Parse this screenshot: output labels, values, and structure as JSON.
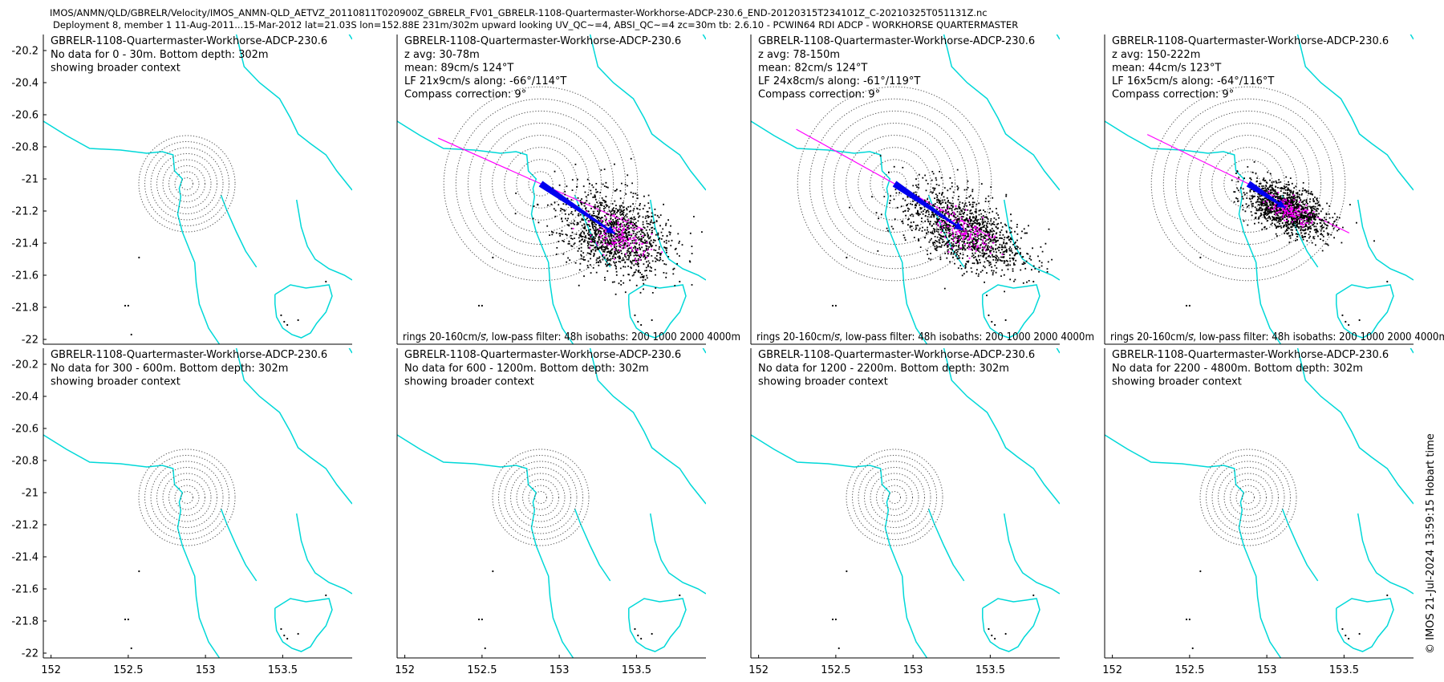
{
  "header": {
    "line1": "IMOS/ANMN/QLD/GBRELR/Velocity/IMOS_ANMN-QLD_AETVZ_20110811T020900Z_GBRELR_FV01_GBRELR-1108-Quartermaster-Workhorse-ADCP-230.6_END-20120315T234101Z_C-20210325T051131Z.nc",
    "line2": "Deployment 8, member 1 11-Aug-2011...15-Mar-2012 lat=21.03S lon=152.88E 231m/302m upward looking UV_QC~=4, ABSI_QC~=4 zc=30m tb: 2.6.10 - PCWIN64 RDI ADCP - WORKHORSE QUARTERMASTER"
  },
  "stamp": "© IMOS 21-Jul-2024 13:59:15 Hobart time",
  "chart_data": {
    "type": "scatter",
    "x_ticks": [
      "152",
      "152.5",
      "153",
      "153.5"
    ],
    "y_ticks": [
      "-20.2",
      "-20.4",
      "-20.6",
      "-20.8",
      "-21",
      "-21.2",
      "-21.4",
      "-21.6",
      "-21.8",
      "-22"
    ],
    "xlim": [
      151.95,
      153.95
    ],
    "ylim": [
      -22.03,
      -20.1
    ],
    "station": {
      "lon": 152.88,
      "lat": -21.03
    },
    "colors": {
      "coast": "#00d8d8",
      "points": "#000000",
      "lowpass": "#ff00ff",
      "mean": "#0000ee",
      "axis": "#000000"
    },
    "panels": [
      {
        "title": "GBRELR-1108-Quartermaster-Workhorse-ADCP-230.6",
        "has_data": false,
        "lines": [
          "No data for 0 - 30m. Bottom depth: 302m",
          "showing broader context"
        ]
      },
      {
        "title": "GBRELR-1108-Quartermaster-Workhorse-ADCP-230.6",
        "has_data": true,
        "lines": [
          "z avg: 30-78m",
          "mean: 89cm/s 124°T",
          "LF 21x9cm/s along: -66°/114°T",
          "Compass correction: 9°"
        ],
        "footer": "rings 20-160cm/s, low-pass filter: 48h isobaths: 200 1000 2000 4000m",
        "mean_speed_cms": 89,
        "mean_dir_degT": 124,
        "lf_major_cms": 21,
        "lf_minor_cms": 9,
        "along_deg": 114
      },
      {
        "title": "GBRELR-1108-Quartermaster-Workhorse-ADCP-230.6",
        "has_data": true,
        "lines": [
          "z avg: 78-150m",
          "mean: 82cm/s 124°T",
          "LF 24x8cm/s along: -61°/119°T",
          "Compass correction: 9°"
        ],
        "footer": "rings 20-160cm/s, low-pass filter: 48h isobaths: 200 1000 2000 4000m",
        "mean_speed_cms": 82,
        "mean_dir_degT": 124,
        "lf_major_cms": 24,
        "lf_minor_cms": 8,
        "along_deg": 119
      },
      {
        "title": "GBRELR-1108-Quartermaster-Workhorse-ADCP-230.6",
        "has_data": true,
        "lines": [
          "z avg: 150-222m",
          "mean: 44cm/s 123°T",
          "LF 16x5cm/s along: -64°/116°T",
          "Compass correction: 9°"
        ],
        "footer": "rings 20-160cm/s, low-pass filter: 48h isobaths: 200 1000 2000 4000m",
        "mean_speed_cms": 44,
        "mean_dir_degT": 123,
        "lf_major_cms": 16,
        "lf_minor_cms": 5,
        "along_deg": 116
      },
      {
        "title": "GBRELR-1108-Quartermaster-Workhorse-ADCP-230.6",
        "has_data": false,
        "lines": [
          "No data for 300 - 600m. Bottom depth: 302m",
          "showing broader context"
        ]
      },
      {
        "title": "GBRELR-1108-Quartermaster-Workhorse-ADCP-230.6",
        "has_data": false,
        "lines": [
          "No data for 600 - 1200m. Bottom depth: 302m",
          "showing broader context"
        ]
      },
      {
        "title": "GBRELR-1108-Quartermaster-Workhorse-ADCP-230.6",
        "has_data": false,
        "lines": [
          "No data for 1200 - 2200m. Bottom depth: 302m",
          "showing broader context"
        ]
      },
      {
        "title": "GBRELR-1108-Quartermaster-Workhorse-ADCP-230.6",
        "has_data": false,
        "lines": [
          "No data for 2200 - 4800m. Bottom depth: 302m",
          "showing broader context"
        ]
      }
    ],
    "coastlines": [
      [
        [
          151.95,
          -20.64
        ],
        [
          152.1,
          -20.73
        ],
        [
          152.25,
          -20.81
        ],
        [
          152.45,
          -20.82
        ],
        [
          152.62,
          -20.84
        ],
        [
          152.72,
          -20.83
        ],
        [
          152.79,
          -20.85
        ],
        [
          152.8,
          -20.95
        ],
        [
          152.85,
          -21.0
        ],
        [
          152.83,
          -21.06
        ],
        [
          152.84,
          -21.11
        ],
        [
          152.82,
          -21.22
        ],
        [
          152.85,
          -21.33
        ],
        [
          152.9,
          -21.45
        ],
        [
          152.93,
          -21.52
        ],
        [
          152.94,
          -21.65
        ],
        [
          152.96,
          -21.78
        ],
        [
          153.02,
          -21.93
        ],
        [
          153.09,
          -22.03
        ]
      ],
      [
        [
          153.15,
          -19.95
        ],
        [
          153.2,
          -20.1
        ],
        [
          153.25,
          -20.3
        ],
        [
          153.35,
          -20.4
        ],
        [
          153.48,
          -20.5
        ],
        [
          153.55,
          -20.62
        ],
        [
          153.6,
          -20.72
        ],
        [
          153.68,
          -20.78
        ],
        [
          153.78,
          -20.85
        ],
        [
          153.85,
          -20.95
        ],
        [
          153.95,
          -21.07
        ]
      ],
      [
        [
          153.59,
          -21.13
        ],
        [
          153.62,
          -21.3
        ],
        [
          153.66,
          -21.42
        ],
        [
          153.71,
          -21.5
        ],
        [
          153.8,
          -21.56
        ],
        [
          153.9,
          -21.6
        ],
        [
          153.95,
          -21.63
        ]
      ],
      [
        [
          153.83,
          -19.95
        ],
        [
          153.9,
          -20.05
        ],
        [
          153.95,
          -20.13
        ]
      ],
      [
        [
          153.45,
          -21.72
        ],
        [
          153.55,
          -21.66
        ],
        [
          153.65,
          -21.68
        ],
        [
          153.73,
          -21.67
        ],
        [
          153.8,
          -21.66
        ],
        [
          153.82,
          -21.73
        ],
        [
          153.78,
          -21.83
        ],
        [
          153.72,
          -21.9
        ],
        [
          153.68,
          -21.96
        ],
        [
          153.62,
          -21.99
        ],
        [
          153.56,
          -21.97
        ],
        [
          153.5,
          -21.93
        ],
        [
          153.46,
          -21.86
        ],
        [
          153.45,
          -21.78
        ],
        [
          153.45,
          -21.72
        ]
      ],
      [
        [
          153.1,
          -21.1
        ],
        [
          153.14,
          -21.2
        ],
        [
          153.2,
          -21.33
        ],
        [
          153.26,
          -21.45
        ],
        [
          153.33,
          -21.55
        ]
      ]
    ],
    "reefs": [
      [
        152.57,
        -21.49
      ],
      [
        152.48,
        -21.79
      ],
      [
        152.5,
        -21.79
      ],
      [
        152.52,
        -21.97
      ],
      [
        153.49,
        -21.85
      ],
      [
        153.51,
        -21.89
      ],
      [
        153.53,
        -21.91
      ],
      [
        153.6,
        -21.88
      ],
      [
        153.78,
        -21.64
      ]
    ]
  }
}
